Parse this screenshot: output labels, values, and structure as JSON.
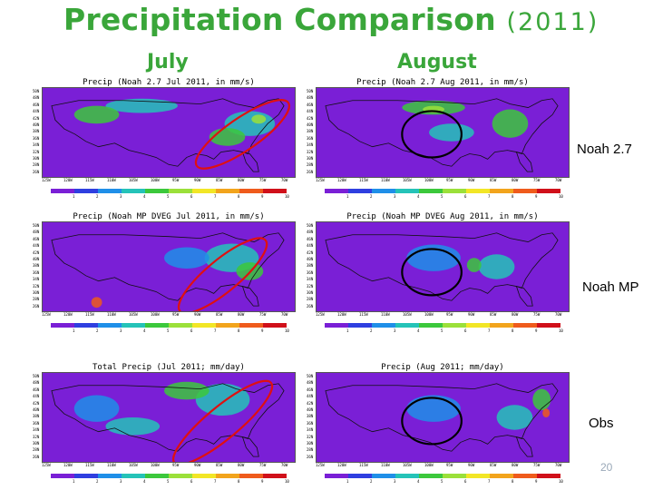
{
  "slide": {
    "title_main": "Precipitation Comparison",
    "title_year": "(2011)",
    "col_july": "July",
    "col_august": "August",
    "row_noah27": "Noah 2.7",
    "row_noahmp": "Noah MP",
    "row_obs": "Obs",
    "page_number": "20"
  },
  "panels": [
    {
      "title": "Precip (Noah 2.7 Jul 2011, in mm/s)"
    },
    {
      "title": "Precip (Noah 2.7 Aug 2011, in mm/s)"
    },
    {
      "title": "Precip (Noah MP DVEG Jul 2011, in mm/s)"
    },
    {
      "title": "Precip (Noah MP DVEG Aug 2011, in mm/s)"
    },
    {
      "title": "Total Precip (Jul 2011; mm/day)"
    },
    {
      "title": "Precip (Aug 2011; mm/day)"
    }
  ],
  "colors": {
    "title_green": "#3aa63a",
    "highlight_red": "#e01010",
    "highlight_black": "#000000"
  },
  "colorbar": [
    "#7a1fd6",
    "#2f3fe0",
    "#1f8fe8",
    "#25c3b8",
    "#3cc83c",
    "#9be03a",
    "#f2e626",
    "#f2a41c",
    "#ef5b1c",
    "#d0101a"
  ],
  "colorbar_ticks": [
    "1",
    "2",
    "3",
    "4",
    "5",
    "6",
    "7",
    "8",
    "9",
    "10"
  ]
}
